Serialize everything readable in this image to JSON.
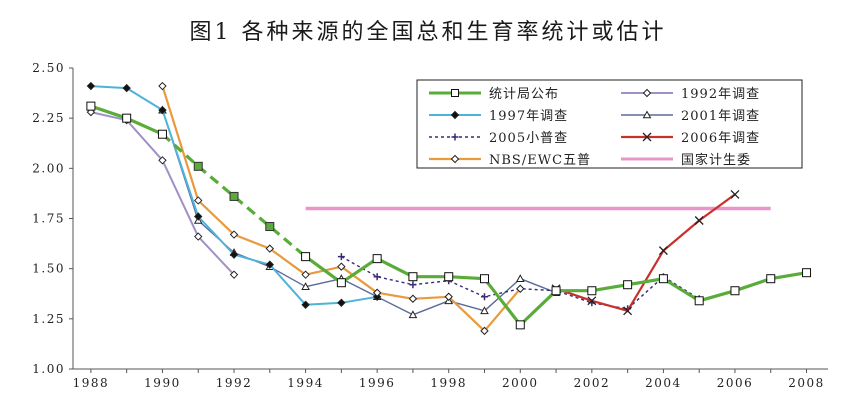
{
  "chart_data": {
    "type": "line",
    "title": "图1  各种来源的全国总和生育率统计或估计",
    "xlabel": "",
    "ylabel": "",
    "xlim": [
      1987.5,
      2008.6
    ],
    "ylim": [
      1.0,
      2.5
    ],
    "x_ticks": [
      1988,
      1990,
      1992,
      1994,
      1996,
      1998,
      2000,
      2002,
      2004,
      2006,
      2008
    ],
    "y_ticks": [
      1.0,
      1.25,
      1.5,
      1.75,
      2.0,
      2.25,
      2.5
    ],
    "y_tick_labels": [
      "1.00",
      "1.25",
      "1.50",
      "1.75",
      "2.00",
      "2.25",
      "2.50"
    ],
    "grid": false,
    "legend_position": "top-right",
    "series": [
      {
        "name": "统计局公布",
        "color": "#5aac3a",
        "marker": "square-open",
        "width": 3.2,
        "segments": [
          {
            "dash": "",
            "points": [
              [
                1988,
                2.31
              ],
              [
                1989,
                2.25
              ],
              [
                1990,
                2.17
              ]
            ]
          },
          {
            "dash": "10,6",
            "points": [
              [
                1990,
                2.17
              ],
              [
                1991,
                2.01
              ],
              [
                1992,
                1.86
              ],
              [
                1993,
                1.71
              ],
              [
                1994,
                1.56
              ]
            ]
          },
          {
            "dash": "",
            "points": [
              [
                1994,
                1.56
              ],
              [
                1995,
                1.43
              ],
              [
                1996,
                1.55
              ],
              [
                1997,
                1.46
              ],
              [
                1998,
                1.46
              ],
              [
                1999,
                1.45
              ],
              [
                2000,
                1.22
              ],
              [
                2001,
                1.39
              ],
              [
                2002,
                1.39
              ],
              [
                2003,
                1.42
              ],
              [
                2004,
                1.45
              ],
              [
                2005,
                1.34
              ],
              [
                2006,
                1.39
              ],
              [
                2007,
                1.45
              ],
              [
                2008,
                1.48
              ]
            ]
          }
        ],
        "filled_markers": [
          [
            1991,
            2.01
          ],
          [
            1992,
            1.86
          ],
          [
            1993,
            1.71
          ]
        ]
      },
      {
        "name": "1992年调查",
        "color": "#a090c8",
        "marker": "diamond-open",
        "width": 2,
        "points": [
          [
            1988,
            2.28
          ],
          [
            1989,
            2.24
          ],
          [
            1990,
            2.04
          ],
          [
            1991,
            1.66
          ],
          [
            1992,
            1.47
          ]
        ]
      },
      {
        "name": "1997年调查",
        "color": "#4fb3d9",
        "marker": "diamond-filled",
        "width": 2,
        "points": [
          [
            1988,
            2.41
          ],
          [
            1989,
            2.4
          ],
          [
            1990,
            2.29
          ],
          [
            1991,
            1.76
          ],
          [
            1992,
            1.57
          ],
          [
            1993,
            1.52
          ],
          [
            1994,
            1.32
          ],
          [
            1995,
            1.33
          ],
          [
            1996,
            1.36
          ]
        ]
      },
      {
        "name": "2001年调查",
        "color": "#5a6a9a",
        "marker": "triangle-open",
        "width": 1.4,
        "points": [
          [
            1990,
            2.29
          ],
          [
            1991,
            1.74
          ],
          [
            1992,
            1.58
          ],
          [
            1993,
            1.51
          ],
          [
            1994,
            1.41
          ],
          [
            1995,
            1.45
          ],
          [
            1996,
            1.36
          ],
          [
            1997,
            1.27
          ],
          [
            1998,
            1.34
          ],
          [
            1999,
            1.29
          ],
          [
            2000,
            1.45
          ],
          [
            2001,
            1.38
          ]
        ]
      },
      {
        "name": "2005小普查",
        "color": "#3a2a7a",
        "marker": "plus",
        "width": 1.4,
        "dash": "3,3",
        "points": [
          [
            1995,
            1.56
          ],
          [
            1996,
            1.46
          ],
          [
            1997,
            1.42
          ],
          [
            1998,
            1.44
          ],
          [
            1999,
            1.36
          ],
          [
            2000,
            1.4
          ],
          [
            2001,
            1.39
          ],
          [
            2002,
            1.33
          ],
          [
            2003,
            1.3
          ],
          [
            2004,
            1.46
          ],
          [
            2005,
            1.35
          ]
        ]
      },
      {
        "name": "2006年调查",
        "color": "#c8302a",
        "marker": "x",
        "width": 2.2,
        "points": [
          [
            2001,
            1.4
          ],
          [
            2002,
            1.34
          ],
          [
            2003,
            1.29
          ],
          [
            2004,
            1.59
          ],
          [
            2005,
            1.74
          ],
          [
            2006,
            1.87
          ]
        ]
      },
      {
        "name": "NBS/EWC五普",
        "color": "#e89a3c",
        "marker": "diamond-open",
        "width": 2.2,
        "points": [
          [
            1990,
            2.41
          ],
          [
            1991,
            1.84
          ],
          [
            1992,
            1.67
          ],
          [
            1993,
            1.6
          ],
          [
            1994,
            1.47
          ],
          [
            1995,
            1.51
          ],
          [
            1996,
            1.38
          ],
          [
            1997,
            1.35
          ],
          [
            1998,
            1.36
          ],
          [
            1999,
            1.19
          ],
          [
            2000,
            1.4
          ]
        ]
      },
      {
        "name": "国家计生委",
        "color": "#e995c8",
        "marker": "none",
        "width": 3.6,
        "points": [
          [
            1994,
            1.8
          ],
          [
            2007,
            1.8
          ]
        ]
      }
    ],
    "legend": [
      {
        "ref": 0,
        "col": 0,
        "row": 0
      },
      {
        "ref": 1,
        "col": 1,
        "row": 0
      },
      {
        "ref": 2,
        "col": 0,
        "row": 1
      },
      {
        "ref": 3,
        "col": 1,
        "row": 1
      },
      {
        "ref": 4,
        "col": 0,
        "row": 2
      },
      {
        "ref": 5,
        "col": 1,
        "row": 2
      },
      {
        "ref": 6,
        "col": 0,
        "row": 3
      },
      {
        "ref": 7,
        "col": 1,
        "row": 3
      }
    ]
  }
}
